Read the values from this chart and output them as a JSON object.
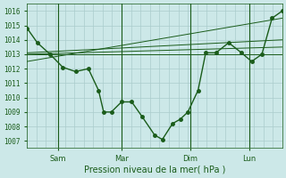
{
  "background_color": "#cce8e8",
  "grid_color": "#aacccc",
  "line_color": "#1a5c1a",
  "text_color": "#1a5c1a",
  "xlabel": "Pression niveau de la mer( hPa )",
  "ylim": [
    1006.5,
    1016.5
  ],
  "yticks": [
    1007,
    1008,
    1009,
    1010,
    1011,
    1012,
    1013,
    1014,
    1015,
    1016
  ],
  "x_day_labels": [
    [
      "Sam",
      0.12
    ],
    [
      "Mar",
      0.37
    ],
    [
      "Dim",
      0.64
    ],
    [
      "Lun",
      0.87
    ]
  ],
  "main_line": {
    "x": [
      0.0,
      0.04,
      0.09,
      0.14,
      0.19,
      0.24,
      0.28,
      0.3,
      0.33,
      0.37,
      0.41,
      0.45,
      0.5,
      0.53,
      0.57,
      0.6,
      0.63,
      0.67,
      0.7,
      0.74,
      0.79,
      0.84,
      0.88,
      0.92,
      0.96,
      1.0
    ],
    "y": [
      1014.8,
      1013.8,
      1013.0,
      1012.1,
      1011.8,
      1012.0,
      1010.5,
      1009.0,
      1009.0,
      1009.7,
      1009.7,
      1008.7,
      1007.4,
      1007.1,
      1008.2,
      1008.5,
      1009.0,
      1010.5,
      1013.1,
      1013.1,
      1013.8,
      1013.1,
      1012.5,
      1013.0,
      1015.5,
      1016.0
    ]
  },
  "flat_lines": [
    {
      "x": [
        0.0,
        1.0
      ],
      "y": [
        1013.0,
        1013.0
      ]
    },
    {
      "x": [
        0.0,
        1.0
      ],
      "y": [
        1013.0,
        1013.5
      ]
    },
    {
      "x": [
        0.0,
        1.0
      ],
      "y": [
        1013.1,
        1014.0
      ]
    },
    {
      "x": [
        0.0,
        1.0
      ],
      "y": [
        1012.5,
        1015.5
      ]
    }
  ],
  "vlines_x": [
    0.12,
    0.37,
    0.64,
    0.87
  ],
  "xlim": [
    0.0,
    1.0
  ]
}
